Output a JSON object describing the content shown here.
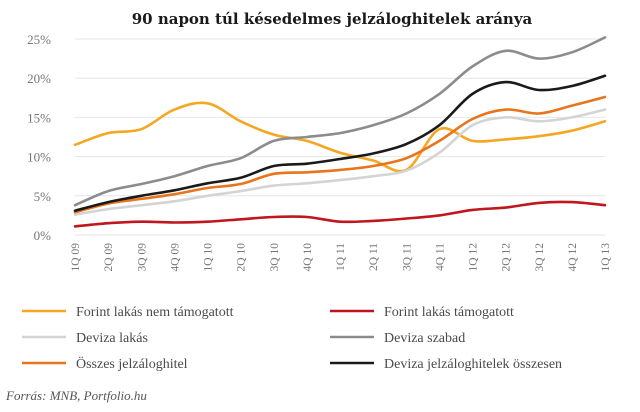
{
  "chart_data": {
    "type": "line",
    "title": "90 napon túl késedelmes jelzáloghitelek aránya",
    "source": "Forrás: MNB, Portfolio.hu",
    "ylim": [
      0,
      25
    ],
    "yticks": [
      {
        "value": 0,
        "label": "0%"
      },
      {
        "value": 5,
        "label": "5%"
      },
      {
        "value": 10,
        "label": "10%"
      },
      {
        "value": 15,
        "label": "15%"
      },
      {
        "value": 20,
        "label": "20%"
      },
      {
        "value": 25,
        "label": "25%"
      }
    ],
    "grid": true,
    "legend_position": "bottom",
    "categories": [
      "1Q 09",
      "2Q 09",
      "3Q 09",
      "4Q 09",
      "1Q 10",
      "2Q 10",
      "3Q 10",
      "4Q 10",
      "1Q 11",
      "2Q 11",
      "3Q 11",
      "4Q 11",
      "1Q 12",
      "2Q 12",
      "3Q 12",
      "4Q 12",
      "1Q 13"
    ],
    "series": [
      {
        "name": "Forint lakás nem támogatott",
        "color": "#f5a623",
        "values": [
          11.5,
          13.0,
          13.5,
          16.0,
          16.8,
          14.5,
          12.8,
          12.0,
          10.5,
          9.5,
          8.3,
          13.5,
          12.0,
          12.2,
          12.6,
          13.3,
          14.5
        ]
      },
      {
        "name": "Forint lakás támogatott",
        "color": "#c0161d",
        "values": [
          1.1,
          1.5,
          1.7,
          1.6,
          1.7,
          2.0,
          2.3,
          2.3,
          1.7,
          1.8,
          2.1,
          2.5,
          3.2,
          3.5,
          4.1,
          4.2,
          3.8
        ]
      },
      {
        "name": "Deviza lakás",
        "color": "#d4d4d4",
        "values": [
          2.6,
          3.3,
          3.8,
          4.3,
          5.0,
          5.6,
          6.3,
          6.6,
          7.0,
          7.5,
          8.2,
          10.5,
          14.0,
          15.0,
          14.5,
          15.0,
          16.0
        ]
      },
      {
        "name": "Deviza szabad",
        "color": "#8c8c8c",
        "values": [
          3.8,
          5.6,
          6.5,
          7.5,
          8.8,
          9.8,
          12.0,
          12.5,
          13.0,
          14.0,
          15.5,
          18.0,
          21.5,
          23.5,
          22.5,
          23.3,
          25.2
        ]
      },
      {
        "name": "Összes jelzáloghitel",
        "color": "#e8741c",
        "values": [
          2.9,
          4.0,
          4.6,
          5.2,
          6.0,
          6.5,
          7.8,
          8.0,
          8.3,
          8.8,
          9.8,
          12.0,
          14.8,
          16.0,
          15.5,
          16.5,
          17.6
        ]
      },
      {
        "name": "Deviza jelzáloghitelek összesen",
        "color": "#1a1a1a",
        "values": [
          3.1,
          4.2,
          5.0,
          5.7,
          6.6,
          7.3,
          8.8,
          9.1,
          9.7,
          10.4,
          11.6,
          14.0,
          18.0,
          19.5,
          18.5,
          19.0,
          20.3
        ]
      }
    ]
  }
}
